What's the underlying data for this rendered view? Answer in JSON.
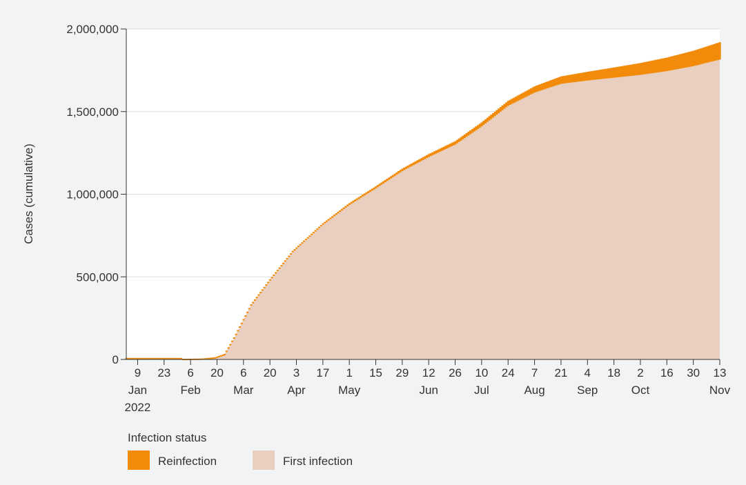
{
  "colors": {
    "reinfection": "#f28a0a",
    "first_infection": "#e8cfbf",
    "plot_background": "#ffffff",
    "page_background": "#f2f3f5",
    "gridline": "#dddddd"
  },
  "legend": {
    "title": "Infection status",
    "items": [
      {
        "label": "Reinfection",
        "color": "#f28a0a"
      },
      {
        "label": "First infection",
        "color": "#e8cfbf"
      }
    ],
    "placement": "bottom-left"
  },
  "chart_data": {
    "type": "area",
    "stacked": true,
    "title": "",
    "xlabel": "",
    "ylabel": "Cases (cumulative)",
    "xlim": [
      "2022-01-03",
      "2022-11-13"
    ],
    "ylim": [
      0,
      2000000
    ],
    "yticks": [
      {
        "value": 0,
        "label": "0"
      },
      {
        "value": 500000,
        "label": "500,000"
      },
      {
        "value": 1000000,
        "label": "1,000,000"
      },
      {
        "value": 1500000,
        "label": "1,500,000"
      },
      {
        "value": 2000000,
        "label": "2,000,000"
      }
    ],
    "xticks": [
      {
        "date": "2022-01-09",
        "day": "9",
        "month": "Jan",
        "year": "2022"
      },
      {
        "date": "2022-01-23",
        "day": "23",
        "month": "",
        "year": ""
      },
      {
        "date": "2022-02-06",
        "day": "6",
        "month": "Feb",
        "year": ""
      },
      {
        "date": "2022-02-20",
        "day": "20",
        "month": "",
        "year": ""
      },
      {
        "date": "2022-03-06",
        "day": "6",
        "month": "Mar",
        "year": ""
      },
      {
        "date": "2022-03-20",
        "day": "20",
        "month": "",
        "year": ""
      },
      {
        "date": "2022-04-03",
        "day": "3",
        "month": "Apr",
        "year": ""
      },
      {
        "date": "2022-04-17",
        "day": "17",
        "month": "",
        "year": ""
      },
      {
        "date": "2022-05-01",
        "day": "1",
        "month": "May",
        "year": ""
      },
      {
        "date": "2022-05-15",
        "day": "15",
        "month": "",
        "year": ""
      },
      {
        "date": "2022-05-29",
        "day": "29",
        "month": "",
        "year": ""
      },
      {
        "date": "2022-06-12",
        "day": "12",
        "month": "Jun",
        "year": ""
      },
      {
        "date": "2022-06-26",
        "day": "26",
        "month": "",
        "year": ""
      },
      {
        "date": "2022-07-10",
        "day": "10",
        "month": "Jul",
        "year": ""
      },
      {
        "date": "2022-07-24",
        "day": "24",
        "month": "",
        "year": ""
      },
      {
        "date": "2022-08-07",
        "day": "7",
        "month": "Aug",
        "year": ""
      },
      {
        "date": "2022-08-21",
        "day": "21",
        "month": "",
        "year": ""
      },
      {
        "date": "2022-09-04",
        "day": "4",
        "month": "Sep",
        "year": ""
      },
      {
        "date": "2022-09-18",
        "day": "18",
        "month": "",
        "year": ""
      },
      {
        "date": "2022-10-02",
        "day": "2",
        "month": "Oct",
        "year": ""
      },
      {
        "date": "2022-10-16",
        "day": "16",
        "month": "",
        "year": ""
      },
      {
        "date": "2022-10-30",
        "day": "30",
        "month": "",
        "year": ""
      },
      {
        "date": "2022-11-13",
        "day": "13",
        "month": "Nov",
        "year": ""
      }
    ],
    "grid": true,
    "series": [
      {
        "name": "First infection",
        "x": [
          "2022-01-03",
          "2022-02-01",
          "2022-02-12",
          "2022-02-19",
          "2022-02-24",
          "2022-03-01",
          "2022-03-10",
          "2022-03-20",
          "2022-04-01",
          "2022-04-17",
          "2022-05-01",
          "2022-05-15",
          "2022-05-29",
          "2022-06-12",
          "2022-06-26",
          "2022-07-10",
          "2022-07-24",
          "2022-08-07",
          "2022-08-21",
          "2022-09-04",
          "2022-09-18",
          "2022-10-02",
          "2022-10-16",
          "2022-10-30",
          "2022-11-13"
        ],
        "values": [
          0,
          0,
          2000,
          10000,
          30000,
          130000,
          330000,
          480000,
          650000,
          815000,
          935000,
          1035000,
          1140000,
          1225000,
          1300000,
          1410000,
          1535000,
          1615000,
          1668000,
          1688000,
          1705000,
          1722000,
          1745000,
          1775000,
          1815000
        ]
      },
      {
        "name": "Reinfection",
        "x": [
          "2022-01-03",
          "2022-02-01",
          "2022-02-12",
          "2022-02-19",
          "2022-02-24",
          "2022-03-01",
          "2022-03-10",
          "2022-03-20",
          "2022-04-01",
          "2022-04-17",
          "2022-05-01",
          "2022-05-15",
          "2022-05-29",
          "2022-06-12",
          "2022-06-26",
          "2022-07-10",
          "2022-07-24",
          "2022-08-07",
          "2022-08-21",
          "2022-09-04",
          "2022-09-18",
          "2022-10-02",
          "2022-10-16",
          "2022-10-30",
          "2022-11-13"
        ],
        "values": [
          0,
          0,
          0,
          0,
          0,
          1000,
          3000,
          5000,
          7000,
          9000,
          11000,
          13000,
          15000,
          18000,
          21000,
          25000,
          30000,
          38000,
          45000,
          53000,
          62000,
          72000,
          82000,
          93000,
          105000
        ]
      }
    ]
  }
}
